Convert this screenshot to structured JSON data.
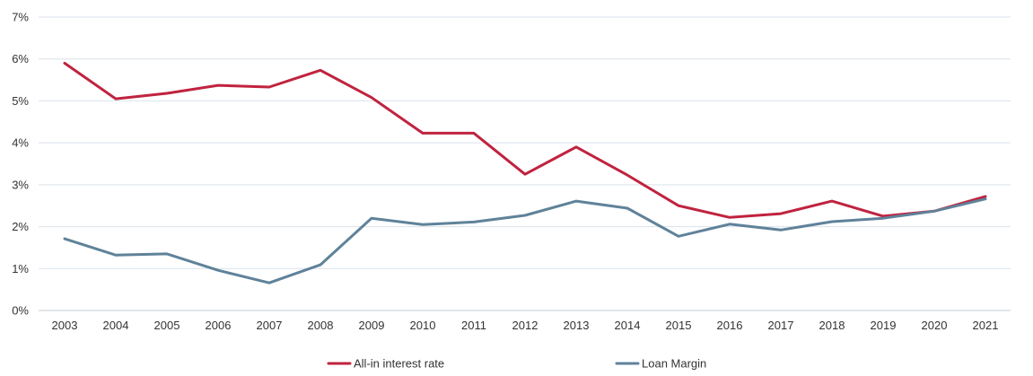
{
  "chart_data": {
    "type": "line",
    "title": "",
    "xlabel": "",
    "ylabel": "",
    "x": [
      "2003",
      "2004",
      "2005",
      "2006",
      "2007",
      "2008",
      "2009",
      "2010",
      "2011",
      "2012",
      "2013",
      "2014",
      "2015",
      "2016",
      "2017",
      "2018",
      "2019",
      "2020",
      "2021"
    ],
    "y_ticks": [
      "0%",
      "1%",
      "2%",
      "3%",
      "4%",
      "5%",
      "6%",
      "7%"
    ],
    "ylim": [
      0,
      7
    ],
    "y_unit": "%",
    "grid": "horizontal",
    "legend_position": "bottom",
    "series": [
      {
        "name": "All-in interest rate",
        "color": "#c0233f",
        "values": [
          5.9,
          5.05,
          5.18,
          5.37,
          5.33,
          5.73,
          5.08,
          4.23,
          4.23,
          3.25,
          3.9,
          3.23,
          2.5,
          2.22,
          2.31,
          2.61,
          2.25,
          2.37,
          2.72
        ]
      },
      {
        "name": "Loan Margin",
        "color": "#5f8299",
        "values": [
          1.71,
          1.32,
          1.35,
          0.96,
          0.66,
          1.09,
          2.2,
          2.05,
          2.11,
          2.27,
          2.61,
          2.44,
          1.77,
          2.06,
          1.92,
          2.12,
          2.2,
          2.37,
          2.66
        ]
      }
    ]
  }
}
